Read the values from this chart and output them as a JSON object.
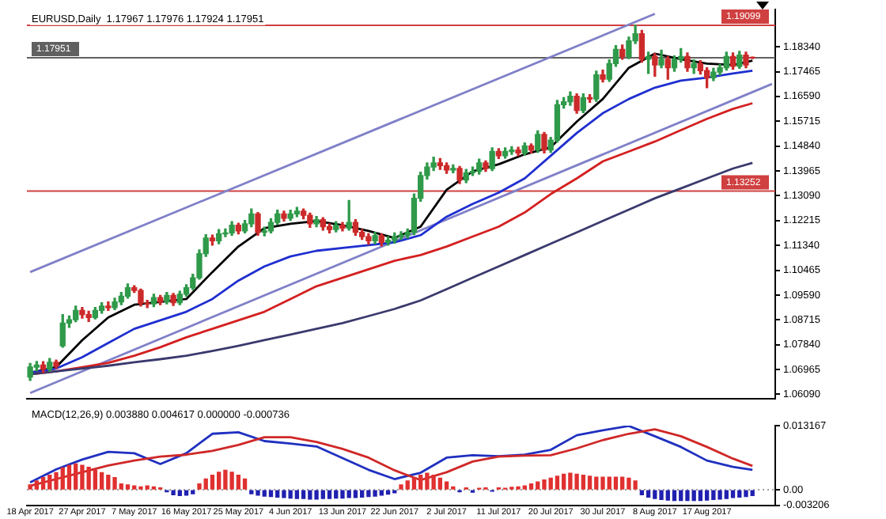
{
  "chart_data": [
    {
      "type": "candlestick",
      "title": "EURUSD,Daily  1.17967 1.17976 1.17924 1.17951",
      "categories": [
        null,
        null,
        null,
        null,
        null,
        null,
        null,
        null,
        null,
        null,
        null,
        null,
        null,
        null,
        null,
        null,
        null,
        null,
        null,
        null,
        null,
        null,
        null,
        null,
        null,
        null,
        null,
        null,
        null,
        null,
        null,
        null,
        null,
        null,
        null,
        null,
        null,
        null,
        null,
        null,
        null,
        null,
        null,
        null,
        null,
        null,
        null,
        null,
        null,
        null,
        null,
        null,
        null,
        null,
        null,
        null,
        null,
        null,
        null,
        null,
        null,
        null,
        null,
        null,
        null,
        null,
        null,
        null,
        null,
        null,
        null,
        null,
        null,
        null,
        null,
        null,
        null,
        null,
        null,
        null,
        null,
        null,
        null,
        null,
        null,
        null,
        null,
        null,
        null,
        null,
        null,
        null,
        null,
        null,
        null,
        null,
        null,
        null,
        null,
        null,
        null,
        null,
        null,
        null,
        null,
        null,
        null,
        null,
        null,
        null,
        null,
        null,
        null,
        null,
        null
      ],
      "ohlc": [
        [
          1.067,
          1.0718,
          1.0658,
          1.0705
        ],
        [
          1.0705,
          1.0725,
          1.0692,
          1.0712
        ],
        [
          1.0712,
          1.0724,
          1.0686,
          1.0698
        ],
        [
          1.0698,
          1.0735,
          1.069,
          1.0722
        ],
        [
          1.0722,
          1.073,
          1.07,
          1.0708
        ],
        [
          1.078,
          1.089,
          1.0775,
          1.086
        ],
        [
          1.086,
          1.0885,
          1.0845,
          1.0872
        ],
        [
          1.0872,
          1.092,
          1.0865,
          1.0905
        ],
        [
          1.0905,
          1.0915,
          1.0878,
          1.089
        ],
        [
          1.089,
          1.0902,
          1.0866,
          1.088
        ],
        [
          1.088,
          1.0915,
          1.0875,
          1.0905
        ],
        [
          1.0905,
          1.0932,
          1.0895,
          1.092
        ],
        [
          1.092,
          1.0935,
          1.0905,
          1.0915
        ],
        [
          1.0915,
          1.0948,
          1.0908,
          1.0935
        ],
        [
          1.0935,
          1.0968,
          1.0925,
          1.0955
        ],
        [
          1.0955,
          1.0998,
          1.0948,
          1.0985
        ],
        [
          1.0985,
          1.0992,
          1.0968,
          1.0975
        ],
        [
          1.0975,
          1.098,
          1.092,
          1.093
        ],
        [
          1.093,
          1.094,
          1.0915,
          1.0928
        ],
        [
          1.0928,
          1.0962,
          1.0918,
          1.095
        ],
        [
          1.095,
          1.0958,
          1.0925,
          1.0935
        ],
        [
          1.0935,
          1.0968,
          1.0928,
          1.0958
        ],
        [
          1.0958,
          1.0965,
          1.0922,
          1.0932
        ],
        [
          1.0932,
          1.0972,
          1.0925,
          1.0962
        ],
        [
          1.0962,
          1.0995,
          1.0955,
          1.0985
        ],
        [
          1.0985,
          1.1032,
          1.0978,
          1.102
        ],
        [
          1.102,
          1.1118,
          1.1015,
          1.1105
        ],
        [
          1.1105,
          1.1172,
          1.1095,
          1.116
        ],
        [
          1.116,
          1.117,
          1.1135,
          1.115
        ],
        [
          1.115,
          1.119,
          1.114,
          1.1175
        ],
        [
          1.1175,
          1.1192,
          1.1165,
          1.1178
        ],
        [
          1.1178,
          1.1218,
          1.117,
          1.1205
        ],
        [
          1.1205,
          1.1212,
          1.1175,
          1.1185
        ],
        [
          1.1185,
          1.1222,
          1.1178,
          1.121
        ],
        [
          1.121,
          1.1262,
          1.12,
          1.1245
        ],
        [
          1.1245,
          1.125,
          1.117,
          1.118
        ],
        [
          1.118,
          1.1198,
          1.1168,
          1.1185
        ],
        [
          1.1185,
          1.1228,
          1.1178,
          1.1215
        ],
        [
          1.1215,
          1.1258,
          1.1208,
          1.1245
        ],
        [
          1.1245,
          1.1255,
          1.122,
          1.123
        ],
        [
          1.123,
          1.1258,
          1.1222,
          1.1245
        ],
        [
          1.1245,
          1.1268,
          1.1235,
          1.1255
        ],
        [
          1.1255,
          1.1262,
          1.1228,
          1.124
        ],
        [
          1.124,
          1.1248,
          1.1198,
          1.121
        ],
        [
          1.121,
          1.1236,
          1.12,
          1.1225
        ],
        [
          1.1225,
          1.1232,
          1.1188,
          1.12
        ],
        [
          1.12,
          1.121,
          1.1178,
          1.119
        ],
        [
          1.119,
          1.1218,
          1.1182,
          1.1205
        ],
        [
          1.1205,
          1.1215,
          1.1185,
          1.1195
        ],
        [
          1.1195,
          1.1292,
          1.1188,
          1.1215
        ],
        [
          1.1215,
          1.1225,
          1.117,
          1.118
        ],
        [
          1.118,
          1.119,
          1.1155,
          1.1165
        ],
        [
          1.1165,
          1.1175,
          1.1138,
          1.115
        ],
        [
          1.115,
          1.118,
          1.114,
          1.1168
        ],
        [
          1.1168,
          1.1175,
          1.1132,
          1.1145
        ],
        [
          1.1145,
          1.1165,
          1.1135,
          1.1152
        ],
        [
          1.1152,
          1.1178,
          1.1142,
          1.1165
        ],
        [
          1.1165,
          1.1182,
          1.1155,
          1.117
        ],
        [
          1.117,
          1.1192,
          1.116,
          1.118
        ],
        [
          1.118,
          1.1315,
          1.1172,
          1.13
        ],
        [
          1.13,
          1.1392,
          1.129,
          1.138
        ],
        [
          1.138,
          1.1425,
          1.1368,
          1.141
        ],
        [
          1.141,
          1.1445,
          1.1398,
          1.1425
        ],
        [
          1.1425,
          1.144,
          1.1402,
          1.1415
        ],
        [
          1.1415,
          1.1425,
          1.1388,
          1.14
        ],
        [
          1.14,
          1.1418,
          1.139,
          1.1405
        ],
        [
          1.1405,
          1.1412,
          1.1352,
          1.1365
        ],
        [
          1.1365,
          1.1402,
          1.1355,
          1.139
        ],
        [
          1.139,
          1.141,
          1.138,
          1.1395
        ],
        [
          1.1395,
          1.1438,
          1.1385,
          1.1425
        ],
        [
          1.1425,
          1.1432,
          1.1395,
          1.1405
        ],
        [
          1.1405,
          1.1478,
          1.1398,
          1.1465
        ],
        [
          1.1465,
          1.1475,
          1.144,
          1.145
        ],
        [
          1.145,
          1.1478,
          1.1442,
          1.1465
        ],
        [
          1.1465,
          1.1482,
          1.1455,
          1.147
        ],
        [
          1.147,
          1.148,
          1.145,
          1.146
        ],
        [
          1.146,
          1.1495,
          1.1452,
          1.1485
        ],
        [
          1.1485,
          1.1492,
          1.146,
          1.147
        ],
        [
          1.147,
          1.1538,
          1.1462,
          1.1525
        ],
        [
          1.1525,
          1.1532,
          1.146,
          1.147
        ],
        [
          1.147,
          1.1515,
          1.1462,
          1.1505
        ],
        [
          1.1505,
          1.1645,
          1.1498,
          1.163
        ],
        [
          1.163,
          1.1655,
          1.1618,
          1.164
        ],
        [
          1.164,
          1.1675,
          1.1628,
          1.166
        ],
        [
          1.166,
          1.1668,
          1.16,
          1.161
        ],
        [
          1.161,
          1.1668,
          1.1602,
          1.1655
        ],
        [
          1.1655,
          1.1665,
          1.1638,
          1.165
        ],
        [
          1.165,
          1.1748,
          1.1642,
          1.1735
        ],
        [
          1.1735,
          1.1752,
          1.171,
          1.172
        ],
        [
          1.172,
          1.1788,
          1.1712,
          1.1775
        ],
        [
          1.1775,
          1.1838,
          1.1765,
          1.1825
        ],
        [
          1.1825,
          1.184,
          1.179,
          1.18
        ],
        [
          1.18,
          1.1868,
          1.1792,
          1.1855
        ],
        [
          1.1855,
          1.191,
          1.1845,
          1.188
        ],
        [
          1.188,
          1.1892,
          1.178,
          1.179
        ],
        [
          1.179,
          1.1815,
          1.174,
          1.18
        ],
        [
          1.18,
          1.181,
          1.173,
          1.177
        ],
        [
          1.177,
          1.1822,
          1.176,
          1.179
        ],
        [
          1.179,
          1.18,
          1.172,
          1.176
        ],
        [
          1.176,
          1.1802,
          1.1748,
          1.179
        ],
        [
          1.179,
          1.1828,
          1.178,
          1.18
        ],
        [
          1.18,
          1.1812,
          1.1748,
          1.176
        ],
        [
          1.176,
          1.1788,
          1.174,
          1.1775
        ],
        [
          1.1775,
          1.1785,
          1.1738,
          1.175
        ],
        [
          1.175,
          1.176,
          1.169,
          1.1725
        ],
        [
          1.1725,
          1.1758,
          1.1715,
          1.1745
        ],
        [
          1.1745,
          1.1772,
          1.1735,
          1.176
        ],
        [
          1.176,
          1.1815,
          1.1752,
          1.18
        ],
        [
          1.18,
          1.1812,
          1.1755,
          1.1765
        ],
        [
          1.1765,
          1.1818,
          1.1758,
          1.1805
        ],
        [
          1.1805,
          1.1815,
          1.176,
          1.177
        ],
        [
          1.17967,
          1.17976,
          1.17924,
          1.17951
        ],
        null,
        null,
        null
      ],
      "series": [
        {
          "type": "line",
          "color": "#3a3a6e",
          "values": [
            1.068,
            null,
            null,
            null,
            1.069,
            null,
            null,
            null,
            1.07,
            null,
            null,
            null,
            1.071,
            null,
            null,
            null,
            1.0722,
            null,
            null,
            null,
            1.0733,
            null,
            null,
            null,
            1.0745,
            null,
            null,
            null,
            1.0762,
            null,
            null,
            null,
            1.078,
            null,
            null,
            null,
            1.08,
            null,
            null,
            null,
            1.082,
            null,
            null,
            null,
            1.084,
            null,
            null,
            null,
            1.086,
            null,
            null,
            null,
            1.0885,
            null,
            null,
            null,
            1.091,
            null,
            null,
            null,
            1.094,
            null,
            null,
            null,
            1.098,
            null,
            null,
            null,
            1.102,
            null,
            null,
            null,
            1.106,
            null,
            null,
            null,
            1.11,
            null,
            null,
            null,
            1.114,
            null,
            null,
            null,
            1.118,
            null,
            null,
            null,
            1.122,
            null,
            null,
            null,
            1.126,
            null,
            null,
            null,
            1.13,
            null,
            null,
            null,
            1.1335,
            null,
            null,
            null,
            1.137,
            null,
            null,
            null,
            1.1405,
            null,
            null,
            1.1425,
            null,
            null,
            null
          ]
        },
        {
          "type": "line",
          "color": "#d42020",
          "values": [
            1.068,
            null,
            null,
            null,
            1.069,
            null,
            null,
            null,
            1.0705,
            null,
            null,
            null,
            1.072,
            null,
            null,
            null,
            1.0745,
            null,
            null,
            null,
            1.0775,
            null,
            null,
            null,
            1.081,
            null,
            null,
            null,
            1.084,
            null,
            null,
            null,
            1.087,
            null,
            null,
            null,
            1.09,
            null,
            null,
            null,
            1.0945,
            null,
            null,
            null,
            1.099,
            null,
            null,
            null,
            1.102,
            null,
            null,
            null,
            1.105,
            null,
            null,
            null,
            1.108,
            null,
            null,
            null,
            1.11,
            null,
            null,
            null,
            1.113,
            null,
            null,
            null,
            1.1165,
            null,
            null,
            null,
            1.12,
            null,
            null,
            null,
            1.125,
            null,
            null,
            null,
            1.1315,
            null,
            null,
            null,
            1.137,
            null,
            null,
            null,
            1.143,
            null,
            null,
            null,
            1.1465,
            null,
            null,
            null,
            1.15,
            null,
            null,
            null,
            1.154,
            null,
            null,
            null,
            1.158,
            null,
            null,
            null,
            1.1615,
            null,
            null,
            1.1635,
            null,
            null,
            null
          ]
        },
        {
          "type": "line",
          "color": "#1f2fd0",
          "values": [
            1.0685,
            null,
            null,
            null,
            1.07,
            null,
            null,
            null,
            1.074,
            null,
            null,
            null,
            1.079,
            null,
            null,
            null,
            1.084,
            null,
            null,
            null,
            1.087,
            null,
            null,
            null,
            1.09,
            null,
            null,
            null,
            1.0945,
            null,
            null,
            null,
            1.101,
            null,
            null,
            null,
            1.106,
            null,
            null,
            null,
            1.1095,
            null,
            null,
            null,
            1.1115,
            null,
            null,
            null,
            1.1125,
            null,
            null,
            null,
            1.1135,
            null,
            null,
            null,
            1.1145,
            null,
            null,
            null,
            1.117,
            null,
            null,
            null,
            1.1235,
            null,
            null,
            null,
            1.128,
            null,
            null,
            null,
            1.132,
            null,
            null,
            null,
            1.137,
            null,
            null,
            null,
            1.145,
            null,
            null,
            null,
            1.153,
            null,
            null,
            null,
            1.16,
            null,
            null,
            null,
            1.165,
            null,
            null,
            null,
            1.169,
            null,
            null,
            null,
            1.1715,
            null,
            null,
            null,
            1.1725,
            null,
            null,
            null,
            1.174,
            null,
            null,
            1.175,
            null,
            null,
            null
          ]
        },
        {
          "type": "line",
          "color": "#000000",
          "values": [
            1.0685,
            null,
            null,
            null,
            1.0705,
            null,
            null,
            null,
            1.08,
            null,
            null,
            null,
            1.088,
            null,
            null,
            null,
            1.0925,
            null,
            null,
            null,
            1.0935,
            null,
            null,
            null,
            1.0945,
            null,
            null,
            null,
            1.104,
            null,
            null,
            null,
            1.113,
            null,
            null,
            null,
            1.1195,
            null,
            null,
            null,
            1.121,
            null,
            null,
            null,
            1.122,
            null,
            null,
            null,
            1.1205,
            null,
            null,
            null,
            1.1185,
            null,
            null,
            null,
            1.116,
            null,
            null,
            null,
            1.12,
            null,
            null,
            null,
            1.133,
            null,
            null,
            null,
            1.1395,
            null,
            null,
            null,
            1.142,
            null,
            null,
            null,
            1.1455,
            null,
            null,
            null,
            1.148,
            null,
            null,
            null,
            1.157,
            null,
            null,
            null,
            1.165,
            null,
            null,
            null,
            1.176,
            null,
            null,
            null,
            1.181,
            null,
            null,
            null,
            1.179,
            null,
            null,
            null,
            1.1775,
            null,
            null,
            null,
            1.177,
            null,
            null,
            1.1785,
            null,
            null,
            null
          ]
        },
        {
          "type": "line",
          "color": "#8080c8",
          "values": [
            1.104,
            null,
            null,
            null,
            null,
            null,
            null,
            null,
            null,
            null,
            null,
            null,
            null,
            null,
            null,
            null,
            null,
            null,
            null,
            null,
            null,
            null,
            null,
            null,
            null,
            null,
            null,
            null,
            null,
            null,
            null,
            null,
            null,
            null,
            null,
            null,
            null,
            null,
            null,
            null,
            null,
            null,
            null,
            null,
            null,
            null,
            null,
            null,
            null,
            null,
            null,
            null,
            null,
            null,
            null,
            null,
            null,
            null,
            null,
            null,
            null,
            null,
            null,
            null,
            null,
            null,
            null,
            null,
            null,
            null,
            null,
            null,
            null,
            null,
            null,
            null,
            null,
            null,
            null,
            null,
            null,
            null,
            null,
            null,
            null,
            null,
            null,
            null,
            null,
            null,
            null,
            null,
            null,
            null,
            null,
            null,
            1.195,
            null,
            null,
            null,
            null,
            null,
            null,
            null,
            null,
            null,
            null,
            null,
            null,
            null,
            null,
            null,
            null,
            null,
            null
          ]
        },
        {
          "type": "line",
          "color": "#8080c8",
          "values": [
            1.0614,
            null,
            null,
            null,
            null,
            null,
            null,
            null,
            null,
            null,
            null,
            null,
            null,
            null,
            null,
            null,
            null,
            null,
            null,
            null,
            null,
            null,
            null,
            null,
            null,
            null,
            null,
            null,
            null,
            null,
            null,
            null,
            null,
            null,
            null,
            null,
            null,
            null,
            null,
            null,
            null,
            null,
            null,
            null,
            null,
            null,
            null,
            null,
            null,
            null,
            null,
            null,
            null,
            null,
            null,
            null,
            null,
            null,
            null,
            null,
            null,
            null,
            null,
            null,
            null,
            null,
            null,
            null,
            null,
            null,
            null,
            null,
            null,
            null,
            null,
            null,
            null,
            null,
            null,
            null,
            null,
            null,
            null,
            null,
            null,
            null,
            null,
            null,
            null,
            null,
            null,
            null,
            null,
            null,
            null,
            null,
            null,
            null,
            null,
            null,
            null,
            null,
            null,
            null,
            null,
            null,
            null,
            null,
            null,
            null,
            null,
            null,
            null,
            null,
            1.1703
          ]
        }
      ],
      "ylim": [
        1.0593,
        1.1966
      ],
      "yticks": [
        {
          "value": 1.0609,
          "label": "1.06090"
        },
        {
          "value": 1.06965,
          "label": "1.06965"
        },
        {
          "value": 1.0784,
          "label": "1.07840"
        },
        {
          "value": 1.08715,
          "label": "1.08715"
        },
        {
          "value": 1.0959,
          "label": "1.09590"
        },
        {
          "value": 1.10465,
          "label": "1.10465"
        },
        {
          "value": 1.1134,
          "label": "1.11340"
        },
        {
          "value": 1.12215,
          "label": "1.12215"
        },
        {
          "value": 1.1309,
          "label": "1.13090"
        },
        {
          "value": 1.13965,
          "label": "1.13965"
        },
        {
          "value": 1.1484,
          "label": "1.14840"
        },
        {
          "value": 1.15715,
          "label": "1.15715"
        },
        {
          "value": 1.1659,
          "label": "1.16590"
        },
        {
          "value": 1.17465,
          "label": "1.17465"
        },
        {
          "value": 1.1834,
          "label": "1.18340"
        }
      ],
      "ref_lines": [
        {
          "axis": "y",
          "value": 1.19099,
          "label": "1.19099",
          "color": "#d04040"
        },
        {
          "axis": "y",
          "value": 1.13252,
          "label": "1.13252",
          "color": "#d04040"
        },
        {
          "axis": "y",
          "value": 1.17951,
          "label": "1.17951",
          "color": "#606060"
        }
      ],
      "tick_labels": "y"
    },
    {
      "type": "bar",
      "title": "MACD(12,26,9) 0.003880 0.004617 0.000000 -0.000736",
      "categories": [
        "18 Apr 2017",
        null,
        null,
        null,
        null,
        null,
        null,
        null,
        "27 Apr 2017",
        null,
        null,
        null,
        null,
        null,
        null,
        null,
        "7 May 2017",
        null,
        null,
        null,
        null,
        null,
        null,
        null,
        "16 May 2017",
        null,
        null,
        null,
        null,
        null,
        null,
        null,
        "25 May 2017",
        null,
        null,
        null,
        null,
        null,
        null,
        null,
        "4 Jun 2017",
        null,
        null,
        null,
        null,
        null,
        null,
        null,
        "13 Jun 2017",
        null,
        null,
        null,
        null,
        null,
        null,
        null,
        "22 Jun 2017",
        null,
        null,
        null,
        null,
        null,
        null,
        null,
        "2 Jul 2017",
        null,
        null,
        null,
        null,
        null,
        null,
        null,
        "11 Jul 2017",
        null,
        null,
        null,
        null,
        null,
        null,
        null,
        "20 Jul 2017",
        null,
        null,
        null,
        null,
        null,
        null,
        null,
        "30 Jul 2017",
        null,
        null,
        null,
        null,
        null,
        null,
        null,
        "8 Aug 2017",
        null,
        null,
        null,
        null,
        null,
        null,
        null,
        "17 Aug 2017",
        null,
        null,
        null,
        null,
        null,
        null,
        null,
        null,
        null,
        null
      ],
      "series": [
        {
          "color": "#e03030",
          "values": [
            0.001,
            0.0018,
            0.0025,
            0.003,
            0.0035,
            0.0045,
            0.005,
            0.0053,
            0.005,
            0.0046,
            0.004,
            0.0035,
            0.003,
            0.0025,
            0.0012,
            0.001,
            0.0008,
            0.0006,
            0.0008,
            0.0006,
            0.0004,
            null,
            null,
            null,
            null,
            null,
            0.0012,
            0.0022,
            0.003,
            0.0036,
            0.004,
            0.0036,
            0.003,
            0.0022,
            null,
            null,
            null,
            null,
            null,
            null,
            null,
            null,
            null,
            null,
            null,
            null,
            null,
            null,
            null,
            null,
            null,
            null,
            null,
            null,
            null,
            null,
            null,
            0.001,
            0.0018,
            0.0025,
            0.003,
            0.0034,
            0.003,
            0.0024,
            0.0016,
            0.0006,
            null,
            0.0004,
            null,
            0.0003,
            0.0004,
            null,
            0.0004,
            0.0003,
            0.0005,
            0.0006,
            0.0008,
            0.0012,
            0.0016,
            0.002,
            0.0024,
            0.0028,
            0.0032,
            0.0034,
            0.0032,
            0.003,
            0.0028,
            0.0026,
            0.0026,
            0.0026,
            0.0026,
            0.0026,
            0.0024,
            0.0018,
            null,
            null,
            null,
            null,
            null,
            null,
            null,
            null,
            null,
            null,
            null,
            null,
            null,
            null,
            null,
            null,
            null,
            null,
            null,
            null,
            null
          ]
        },
        {
          "color": "#2020b0",
          "values": [
            null,
            null,
            null,
            null,
            null,
            null,
            null,
            null,
            null,
            null,
            null,
            null,
            null,
            null,
            null,
            null,
            null,
            null,
            null,
            null,
            null,
            -0.0004,
            -0.001,
            -0.0012,
            -0.0011,
            -0.0008,
            null,
            null,
            null,
            null,
            null,
            null,
            null,
            null,
            -0.0008,
            -0.0011,
            -0.0013,
            -0.0014,
            -0.0015,
            -0.0016,
            -0.0017,
            -0.0018,
            -0.0018,
            -0.0019,
            -0.0019,
            -0.0018,
            -0.0018,
            -0.0017,
            -0.0017,
            -0.0016,
            -0.0016,
            -0.0015,
            -0.0014,
            -0.0013,
            -0.0011,
            -0.0009,
            -0.0006,
            null,
            null,
            null,
            null,
            null,
            null,
            null,
            null,
            null,
            -0.0004,
            null,
            -0.0005,
            null,
            null,
            -0.0003,
            null,
            null,
            null,
            null,
            null,
            null,
            null,
            null,
            null,
            null,
            null,
            null,
            null,
            null,
            null,
            null,
            null,
            null,
            null,
            null,
            null,
            null,
            -0.001,
            -0.0015,
            -0.0018,
            -0.002,
            -0.0021,
            -0.0022,
            -0.0022,
            -0.0022,
            -0.0022,
            -0.0022,
            -0.0021,
            -0.002,
            -0.0019,
            -0.0018,
            -0.0016,
            -0.0015,
            -0.0014,
            -0.0012,
            null,
            null,
            null
          ]
        },
        {
          "type": "line",
          "color": "#d02828",
          "values": [
            0.0008,
            null,
            null,
            null,
            0.0022,
            null,
            null,
            null,
            0.0036,
            null,
            null,
            null,
            0.005,
            null,
            null,
            null,
            0.006,
            null,
            null,
            null,
            0.0068,
            null,
            null,
            null,
            0.0072,
            null,
            null,
            null,
            0.008,
            null,
            null,
            null,
            0.0092,
            null,
            null,
            null,
            0.0108,
            null,
            null,
            null,
            0.0108,
            null,
            null,
            null,
            0.0098,
            null,
            null,
            null,
            0.0084,
            null,
            null,
            null,
            0.0066,
            null,
            null,
            null,
            0.004,
            null,
            null,
            null,
            0.002,
            null,
            null,
            null,
            0.0036,
            null,
            null,
            null,
            0.0058,
            null,
            null,
            null,
            0.0068,
            null,
            null,
            null,
            0.007,
            null,
            null,
            null,
            0.0071,
            null,
            null,
            null,
            0.0085,
            null,
            null,
            null,
            0.0102,
            null,
            null,
            null,
            0.0115,
            null,
            null,
            null,
            0.0124,
            null,
            null,
            null,
            0.011,
            null,
            null,
            null,
            0.0088,
            null,
            null,
            null,
            0.0064,
            null,
            null,
            0.0049,
            null,
            null,
            null
          ]
        },
        {
          "type": "line",
          "color": "#2030c0",
          "values": [
            0.0015,
            null,
            null,
            null,
            0.0042,
            null,
            null,
            null,
            0.0062,
            null,
            null,
            null,
            0.0078,
            null,
            null,
            null,
            0.0075,
            null,
            null,
            null,
            0.0053,
            null,
            null,
            null,
            0.0075,
            null,
            null,
            null,
            0.0115,
            null,
            null,
            null,
            0.0118,
            null,
            null,
            null,
            0.01,
            null,
            null,
            null,
            0.0095,
            null,
            null,
            null,
            0.0089,
            null,
            null,
            null,
            0.0065,
            null,
            null,
            null,
            0.0041,
            null,
            null,
            null,
            0.0022,
            null,
            null,
            null,
            0.0035,
            null,
            null,
            null,
            0.0066,
            null,
            null,
            null,
            0.0071,
            null,
            null,
            null,
            0.0069,
            null,
            null,
            null,
            0.0072,
            null,
            null,
            null,
            0.0082,
            null,
            null,
            null,
            0.0112,
            null,
            null,
            null,
            0.0122,
            null,
            null,
            null,
            0.0131,
            null,
            null,
            null,
            0.011,
            null,
            null,
            null,
            0.0088,
            null,
            null,
            null,
            0.006,
            null,
            null,
            null,
            0.0047,
            null,
            null,
            0.0041,
            null,
            null,
            null
          ]
        }
      ],
      "ylim": [
        -0.003206,
        0.013167
      ],
      "yticks": [
        {
          "value": -0.003206,
          "label": "-0.003206"
        },
        {
          "value": 0,
          "label": "0.00"
        },
        {
          "value": 0.013167,
          "label": "0.013167"
        }
      ],
      "ref_lines": [
        {
          "axis": "y",
          "value": 0,
          "color": "#a0a0a0",
          "line_style": "dotted"
        }
      ]
    }
  ]
}
